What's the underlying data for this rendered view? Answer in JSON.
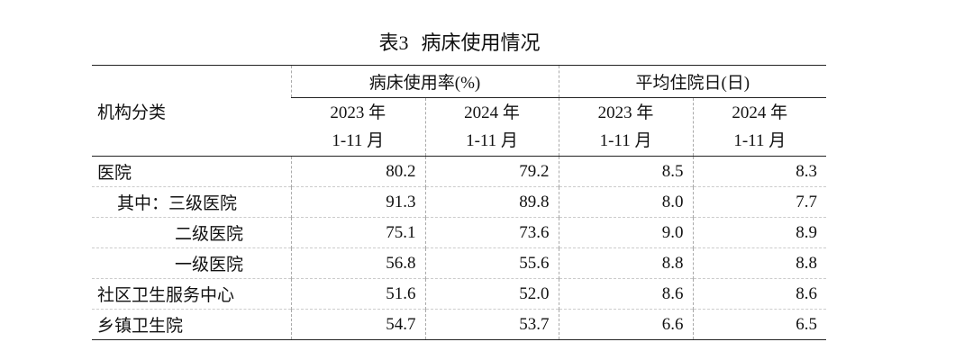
{
  "title": {
    "number": "表3",
    "text": "病床使用情况"
  },
  "table": {
    "header": {
      "row_label": "机构分类",
      "groups": [
        "病床使用率(%)",
        "平均住院日(日)"
      ],
      "periods": [
        {
          "year": "2023 年",
          "months": "1-11 月"
        },
        {
          "year": "2024 年",
          "months": "1-11 月"
        },
        {
          "year": "2023 年",
          "months": "1-11 月"
        },
        {
          "year": "2024 年",
          "months": "1-11 月"
        }
      ]
    },
    "rows": [
      [
        "医院",
        "80.2",
        "79.2",
        "8.5",
        "8.3"
      ],
      [
        "其中：三级医院",
        "91.3",
        "89.8",
        "8.0",
        "7.7"
      ],
      [
        "二级医院",
        "75.1",
        "73.6",
        "9.0",
        "8.9"
      ],
      [
        "一级医院",
        "56.8",
        "55.6",
        "8.8",
        "8.8"
      ],
      [
        "社区卫生服务中心",
        "51.6",
        "52.0",
        "8.6",
        "8.6"
      ],
      [
        "乡镇卫生院",
        "54.7",
        "53.7",
        "6.6",
        "6.5"
      ]
    ]
  }
}
